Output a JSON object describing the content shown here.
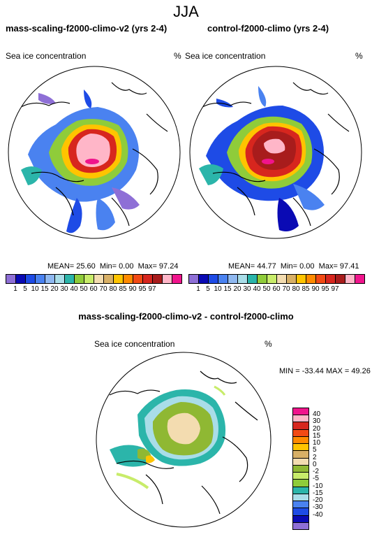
{
  "season": "JJA",
  "panels": {
    "left": {
      "title": "mass-scaling-f2000-climo-v2 (yrs 2-4)",
      "variable": "Sea ice concentration",
      "units": "%",
      "mean": "MEAN= 25.60",
      "min": "Min= 0.00",
      "max": "Max= 97.24"
    },
    "right": {
      "title": "control-f2000-climo (yrs 2-4)",
      "variable": "Sea ice concentration",
      "units": "%",
      "mean": "MEAN= 44.77",
      "min": "Min= 0.00",
      "max": "Max= 97.41"
    },
    "diff": {
      "title": "mass-scaling-f2000-climo-v2 - control-f2000-climo",
      "variable": "Sea ice concentration",
      "units": "%",
      "minmax": "MIN = -33.44 MAX = 49.26"
    }
  },
  "colorbar_top": {
    "labels": [
      "1",
      "5",
      "10",
      "15",
      "20",
      "30",
      "40",
      "50",
      "60",
      "70",
      "80",
      "85",
      "90",
      "95",
      "97"
    ],
    "colors": [
      "#8e6fd6",
      "#0a0ab4",
      "#1e4be6",
      "#4a82f0",
      "#8fb8f0",
      "#a9dde8",
      "#2bb5aa",
      "#8fcc3a",
      "#c8ec6a",
      "#f3dcb0",
      "#d8b066",
      "#ffc400",
      "#ff8a00",
      "#f24a14",
      "#d7261e",
      "#a81c1c",
      "#ffb6c8",
      "#f0148c"
    ]
  },
  "colorbar_diff": {
    "labels": [
      "40",
      "30",
      "20",
      "15",
      "10",
      "5",
      "2",
      "0",
      "-2",
      "-5",
      "-10",
      "-15",
      "-20",
      "-30",
      "-40"
    ],
    "colors": [
      "#f0148c",
      "#ffb6c8",
      "#d7261e",
      "#f24a14",
      "#ff8a00",
      "#ffc400",
      "#d8b066",
      "#f3dcb0",
      "#8fb833",
      "#c8ec6a",
      "#8fcc3a",
      "#2bb5aa",
      "#a9dde8",
      "#4a82f0",
      "#1e4be6",
      "#0a0ab4",
      "#8e6fd6"
    ]
  }
}
